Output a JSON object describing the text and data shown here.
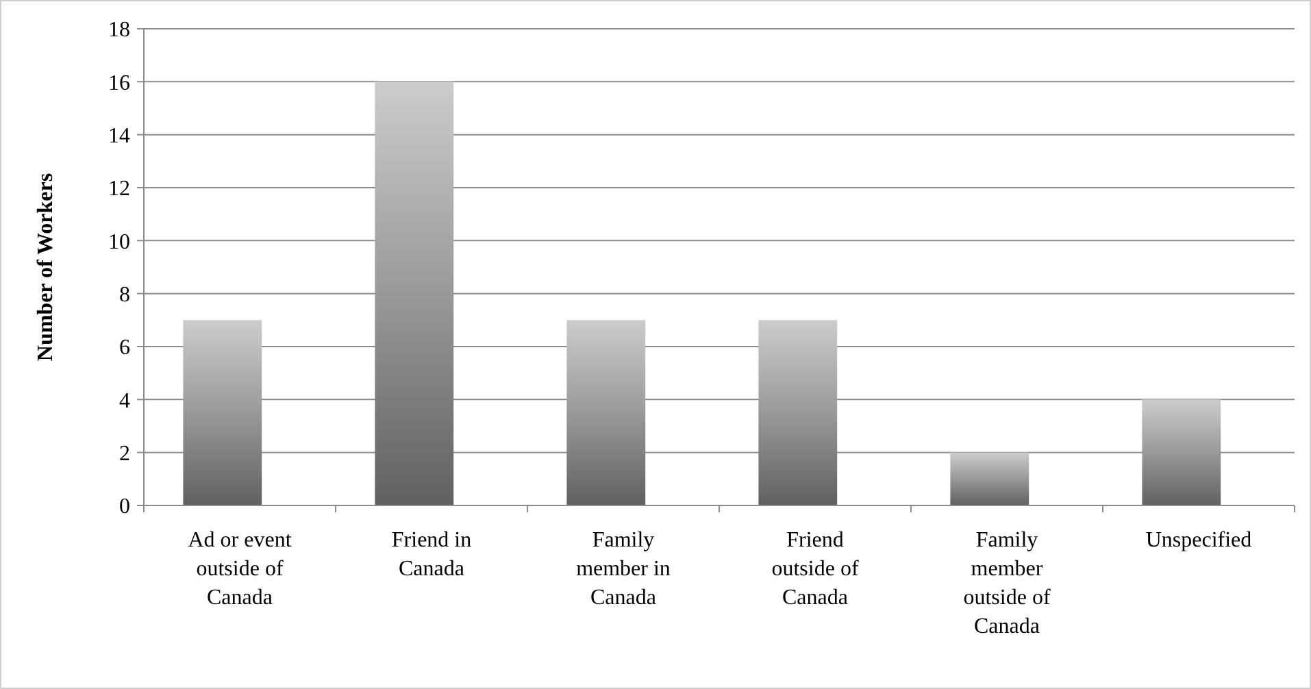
{
  "chart_data": {
    "type": "bar",
    "ylabel": "Number of Workers",
    "categories": [
      "Ad or event outside of Canada",
      "Friend in Canada",
      "Family member in Canada",
      "Friend outside of Canada",
      "Family member outside of Canada",
      "Unspecified"
    ],
    "values": [
      7,
      16,
      7,
      7,
      2,
      4
    ],
    "color": "#999999",
    "ylim": [
      0,
      18
    ],
    "yticks": [
      0,
      2,
      4,
      6,
      8,
      10,
      12,
      14,
      16,
      18
    ],
    "grid": "y"
  }
}
